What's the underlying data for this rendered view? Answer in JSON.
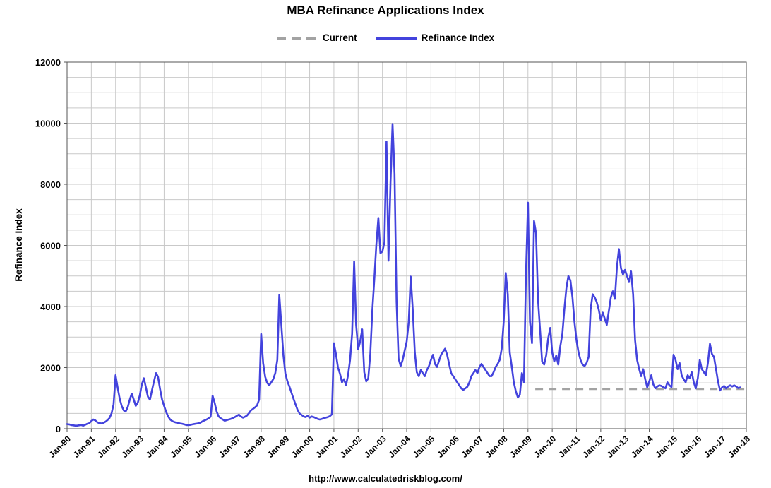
{
  "title": "MBA Refinance Applications Index",
  "legend": {
    "items": [
      {
        "label": "Current"
      },
      {
        "label": "Refinance Index"
      }
    ]
  },
  "footer": "http://www.calculatedriskblog.com/",
  "chart_data": {
    "type": "line",
    "title": "MBA Refinance Applications Index",
    "xlabel": "",
    "ylabel": "Refinance Index",
    "ylim": [
      0,
      12000
    ],
    "xlim": [
      1990,
      2018
    ],
    "ytick_step": 2000,
    "minor_hgrid_step": 500,
    "grid": true,
    "legend_position": "top",
    "x_tick_labels": [
      "Jan-90",
      "Jan-91",
      "Jan-92",
      "Jan-93",
      "Jan-94",
      "Jan-95",
      "Jan-96",
      "Jan-97",
      "Jan-98",
      "Jan-99",
      "Jan-00",
      "Jan-01",
      "Jan-02",
      "Jan-03",
      "Jan-04",
      "Jan-05",
      "Jan-06",
      "Jan-07",
      "Jan-08",
      "Jan-09",
      "Jan-10",
      "Jan-11",
      "Jan-12",
      "Jan-13",
      "Jan-14",
      "Jan-15",
      "Jan-16",
      "Jan-17",
      "Jan-18"
    ],
    "series": [
      {
        "name": "Current",
        "color": "#a3a3a3",
        "dashed": true,
        "x": [
          2009.3,
          2017.95
        ],
        "values": [
          1300,
          1300
        ]
      },
      {
        "name": "Refinance Index",
        "color": "#4343dd",
        "dashed": false,
        "x_start": 1990.0,
        "x_step": 0.0833333,
        "values": [
          150,
          140,
          120,
          110,
          100,
          100,
          110,
          120,
          100,
          130,
          160,
          180,
          250,
          300,
          270,
          210,
          180,
          170,
          190,
          230,
          280,
          350,
          500,
          800,
          1750,
          1350,
          1000,
          750,
          600,
          560,
          700,
          950,
          1150,
          950,
          750,
          850,
          1100,
          1450,
          1650,
          1350,
          1050,
          950,
          1250,
          1550,
          1820,
          1700,
          1300,
          950,
          750,
          550,
          400,
          300,
          250,
          220,
          200,
          185,
          170,
          160,
          140,
          120,
          115,
          125,
          140,
          155,
          165,
          175,
          200,
          240,
          270,
          300,
          340,
          390,
          1080,
          850,
          560,
          400,
          340,
          300,
          260,
          280,
          300,
          320,
          350,
          380,
          420,
          460,
          400,
          360,
          390,
          430,
          510,
          600,
          650,
          700,
          760,
          950,
          3100,
          2150,
          1700,
          1500,
          1420,
          1520,
          1620,
          1820,
          2250,
          4380,
          3400,
          2400,
          1800,
          1550,
          1380,
          1180,
          980,
          800,
          620,
          500,
          450,
          400,
          380,
          420,
          360,
          400,
          380,
          350,
          320,
          300,
          320,
          340,
          360,
          380,
          410,
          470,
          2800,
          2450,
          2000,
          1800,
          1520,
          1620,
          1420,
          1750,
          2250,
          3100,
          5480,
          3400,
          2600,
          2850,
          3250,
          1850,
          1550,
          1650,
          2450,
          3850,
          4900,
          6050,
          6900,
          5750,
          5800,
          6100,
          9400,
          5500,
          8050,
          9978,
          8350,
          4150,
          2300,
          2050,
          2250,
          2550,
          2850,
          3500,
          4980,
          3900,
          2500,
          1850,
          1720,
          1920,
          1820,
          1720,
          1920,
          2050,
          2250,
          2420,
          2120,
          2020,
          2220,
          2420,
          2520,
          2620,
          2420,
          2120,
          1820,
          1720,
          1620,
          1520,
          1420,
          1320,
          1270,
          1320,
          1370,
          1520,
          1720,
          1820,
          1920,
          1820,
          2020,
          2120,
          2020,
          1920,
          1820,
          1720,
          1720,
          1850,
          2020,
          2120,
          2250,
          2620,
          3500,
          5100,
          4400,
          2500,
          2020,
          1520,
          1220,
          1020,
          1120,
          1820,
          1520,
          5000,
          7400,
          3500,
          2800,
          6800,
          6400,
          4200,
          3200,
          2200,
          2100,
          2400,
          2950,
          3300,
          2500,
          2200,
          2400,
          2100,
          2700,
          3100,
          3900,
          4600,
          5000,
          4850,
          4300,
          3500,
          2900,
          2500,
          2250,
          2100,
          2050,
          2150,
          2350,
          3900,
          4400,
          4300,
          4150,
          3900,
          3550,
          3800,
          3600,
          3400,
          3850,
          4300,
          4500,
          4250,
          5300,
          5880,
          5250,
          5050,
          5200,
          5000,
          4800,
          5150,
          4400,
          2900,
          2250,
          1950,
          1720,
          1950,
          1620,
          1350,
          1550,
          1750,
          1450,
          1320,
          1380,
          1420,
          1400,
          1360,
          1320,
          1520,
          1420,
          1360,
          2420,
          2250,
          1950,
          2150,
          1750,
          1620,
          1520,
          1750,
          1650,
          1850,
          1520,
          1320,
          1650,
          2250,
          1950,
          1850,
          1750,
          2150,
          2780,
          2450,
          2350,
          1950,
          1550,
          1250,
          1350,
          1400,
          1320,
          1380,
          1420,
          1380,
          1420,
          1380,
          1330,
          1350
        ]
      }
    ]
  }
}
